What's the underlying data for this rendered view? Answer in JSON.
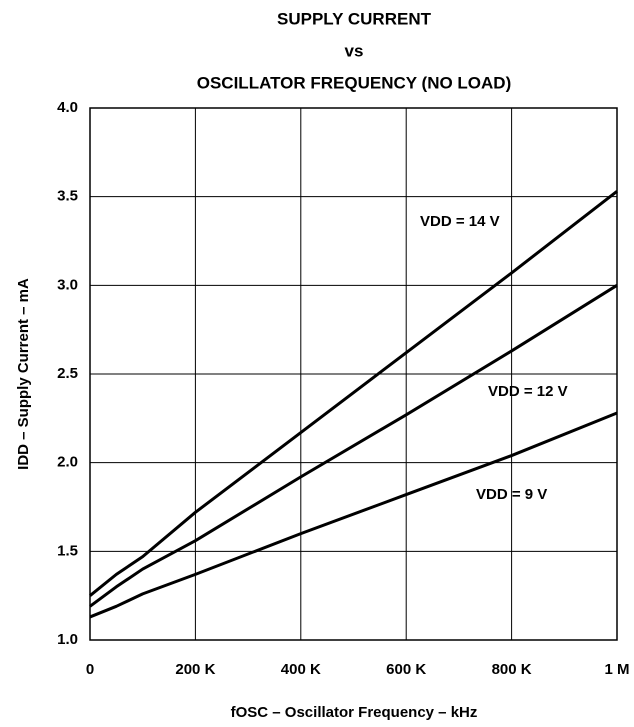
{
  "chart_data": {
    "type": "line",
    "title": [
      "SUPPLY CURRENT",
      "vs",
      "OSCILLATOR FREQUENCY (NO LOAD)"
    ],
    "ylabel": "IDD – Supply Current – mA",
    "xlabel": "fOSC – Oscillator Frequency – kHz",
    "x": [
      0,
      50,
      100,
      200,
      400,
      600,
      800,
      1000
    ],
    "series": [
      {
        "name": "VDD = 14 V",
        "color": "#000000",
        "values": [
          1.25,
          1.37,
          1.47,
          1.72,
          2.17,
          2.62,
          3.07,
          3.53
        ]
      },
      {
        "name": "VDD = 12 V",
        "color": "#000000",
        "values": [
          1.19,
          1.3,
          1.4,
          1.56,
          1.92,
          2.27,
          2.63,
          3.0
        ]
      },
      {
        "name": "VDD = 9 V",
        "color": "#000000",
        "values": [
          1.13,
          1.19,
          1.26,
          1.37,
          1.6,
          1.82,
          2.04,
          2.28
        ]
      }
    ],
    "xlim": [
      0,
      1000
    ],
    "xticks": [
      0,
      {
        "value": 200,
        "label": "200 K"
      },
      {
        "value": 400,
        "label": "400 K"
      },
      {
        "value": 600,
        "label": "600 K"
      },
      {
        "value": 800,
        "label": "800 K"
      },
      {
        "value": 1000,
        "label": "1 M"
      }
    ],
    "ylim": [
      1,
      4
    ],
    "yticks": [
      {
        "value": 1,
        "label": "1.0"
      },
      1.5,
      {
        "value": 2,
        "label": "2.0"
      },
      2.5,
      {
        "value": 3,
        "label": "3.0"
      },
      3.5,
      {
        "value": 4,
        "label": "4.0"
      }
    ],
    "grid": true
  }
}
